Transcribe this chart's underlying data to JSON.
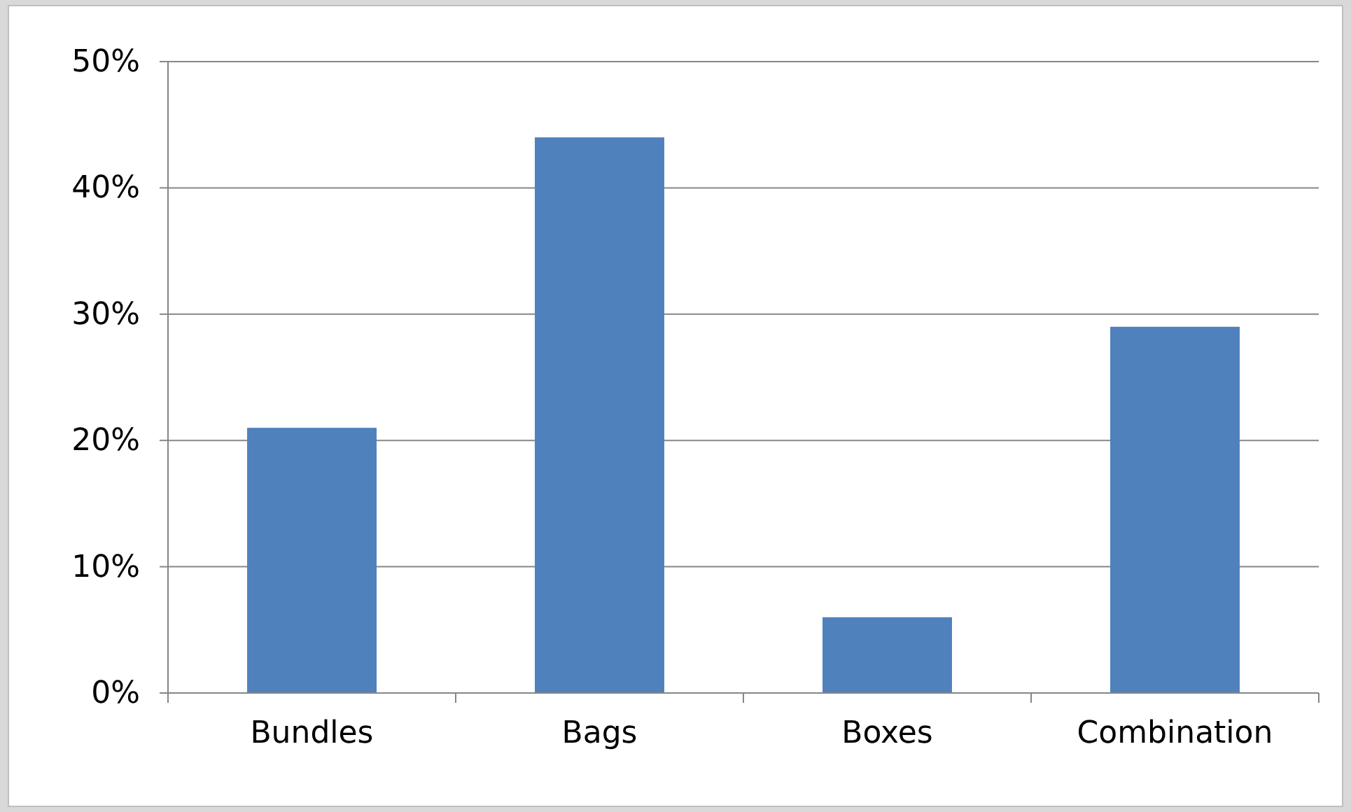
{
  "chart_data": {
    "type": "bar",
    "categories": [
      "Bundles",
      "Bags",
      "Boxes",
      "Combination"
    ],
    "values": [
      21,
      44,
      6,
      29
    ],
    "color": "#4f81bd",
    "ylim": [
      0,
      50
    ],
    "yticks": [
      {
        "value": 0,
        "label": "0%"
      },
      {
        "value": 10,
        "label": "10%"
      },
      {
        "value": 20,
        "label": "20%"
      },
      {
        "value": 30,
        "label": "30%"
      },
      {
        "value": 40,
        "label": "40%"
      },
      {
        "value": 50,
        "label": "50%"
      }
    ],
    "grid": "y"
  }
}
